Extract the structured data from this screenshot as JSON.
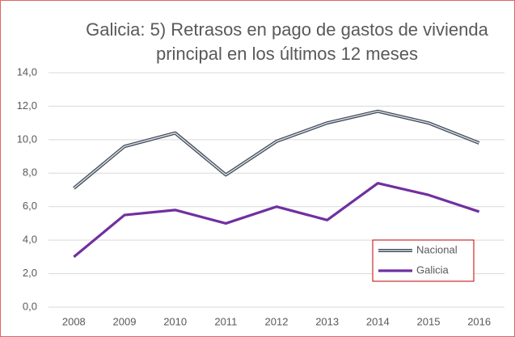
{
  "chart_data": {
    "type": "line",
    "title": [
      "Galicia: 5) Retrasos en pago de gastos de vivienda",
      "principal en los últimos 12 meses"
    ],
    "categories": [
      "2008",
      "2009",
      "2010",
      "2011",
      "2012",
      "2013",
      "2014",
      "2015",
      "2016"
    ],
    "series": [
      {
        "name": "Nacional",
        "color": "#3b4656",
        "values": [
          7.1,
          9.6,
          10.4,
          7.9,
          9.9,
          11.0,
          11.7,
          11.0,
          9.8
        ]
      },
      {
        "name": "Galicia",
        "color": "#7030a0",
        "values": [
          3.0,
          5.5,
          5.8,
          5.0,
          6.0,
          5.2,
          7.4,
          6.7,
          5.7
        ]
      }
    ],
    "ylim": [
      0,
      14
    ],
    "yticks": [
      {
        "value": 0,
        "label": "0,0"
      },
      {
        "value": 2,
        "label": "2,0"
      },
      {
        "value": 4,
        "label": "4,0"
      },
      {
        "value": 6,
        "label": "6,0"
      },
      {
        "value": 8,
        "label": "8,0"
      },
      {
        "value": 10,
        "label": "10,0"
      },
      {
        "value": 12,
        "label": "12,0"
      },
      {
        "value": 14,
        "label": "14,0"
      }
    ],
    "grid": true,
    "legend": "lower right"
  }
}
